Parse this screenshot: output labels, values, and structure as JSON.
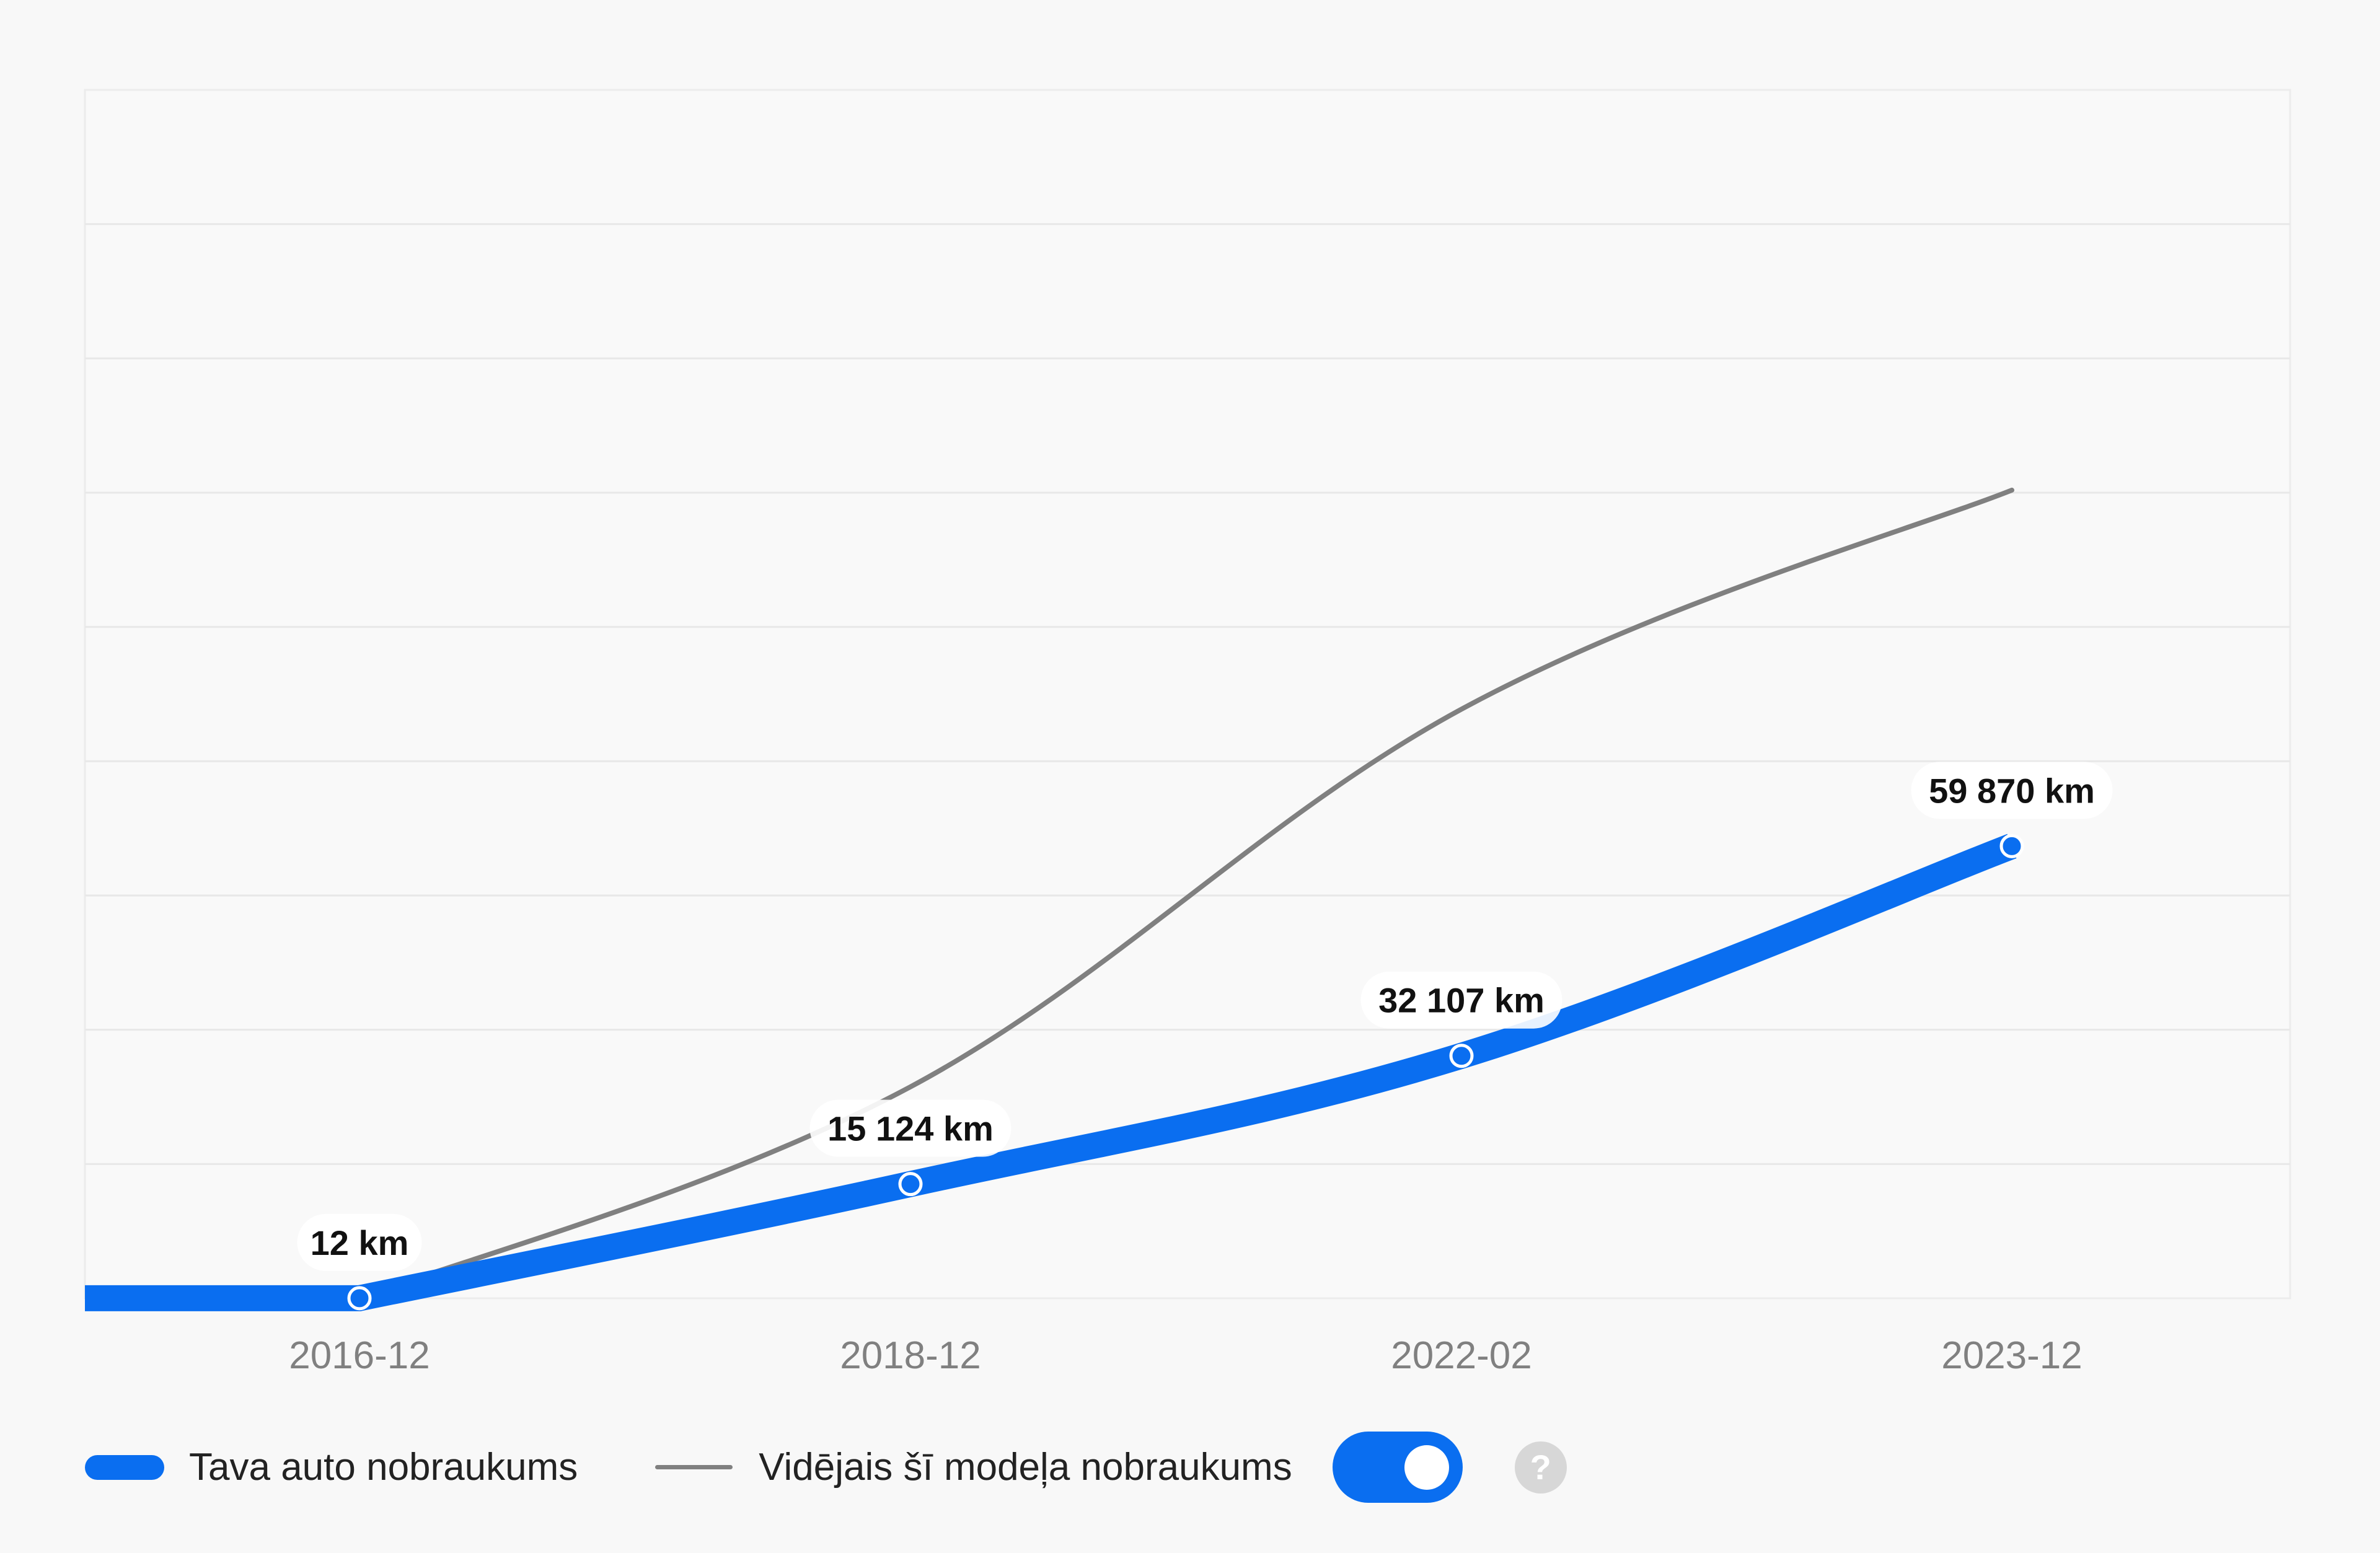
{
  "chart_data": {
    "type": "line",
    "categories": [
      "2016-12",
      "2018-12",
      "2022-02",
      "2023-12"
    ],
    "series": [
      {
        "name": "Tava auto nobraukums",
        "values": [
          12,
          15124,
          32107,
          59870
        ],
        "value_labels": [
          "12 km",
          "15 124 km",
          "32 107 km",
          "59 870 km"
        ],
        "color": "#0a6ef0"
      },
      {
        "name": "Vidējais šī modeļa nobraukums",
        "values": [
          0,
          28000,
          78000,
          107000
        ],
        "color": "#808080"
      }
    ],
    "ylim": [
      0,
      160000
    ],
    "grid": true,
    "legend_position": "bottom-left"
  },
  "legend": {
    "series1_label": "Tava auto nobraukums",
    "series2_label": "Vidējais šī modeļa nobraukums",
    "toggle_on": true,
    "help_icon": "?"
  },
  "colors": {
    "accent": "#0a6ef0",
    "average_line": "#808080",
    "grid": "#e8e8e8"
  }
}
